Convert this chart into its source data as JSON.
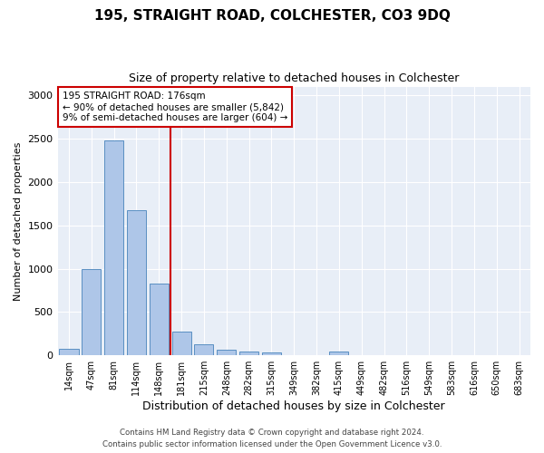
{
  "title": "195, STRAIGHT ROAD, COLCHESTER, CO3 9DQ",
  "subtitle": "Size of property relative to detached houses in Colchester",
  "xlabel": "Distribution of detached houses by size in Colchester",
  "ylabel": "Number of detached properties",
  "categories": [
    "14sqm",
    "47sqm",
    "81sqm",
    "114sqm",
    "148sqm",
    "181sqm",
    "215sqm",
    "248sqm",
    "282sqm",
    "315sqm",
    "349sqm",
    "382sqm",
    "415sqm",
    "449sqm",
    "482sqm",
    "516sqm",
    "549sqm",
    "583sqm",
    "616sqm",
    "650sqm",
    "683sqm"
  ],
  "values": [
    80,
    1000,
    2480,
    1670,
    830,
    270,
    130,
    60,
    40,
    30,
    0,
    0,
    45,
    0,
    0,
    0,
    0,
    0,
    0,
    0,
    0
  ],
  "bar_color": "#aec6e8",
  "bar_edgecolor": "#5a8fc2",
  "vline_color": "#cc0000",
  "annotation_text": "195 STRAIGHT ROAD: 176sqm\n← 90% of detached houses are smaller (5,842)\n9% of semi-detached houses are larger (604) →",
  "annotation_box_edgecolor": "#cc0000",
  "ylim": [
    0,
    3100
  ],
  "yticks": [
    0,
    500,
    1000,
    1500,
    2000,
    2500,
    3000
  ],
  "background_color": "#e8eef7",
  "grid_color": "#ffffff",
  "footer_line1": "Contains HM Land Registry data © Crown copyright and database right 2024.",
  "footer_line2": "Contains public sector information licensed under the Open Government Licence v3.0."
}
